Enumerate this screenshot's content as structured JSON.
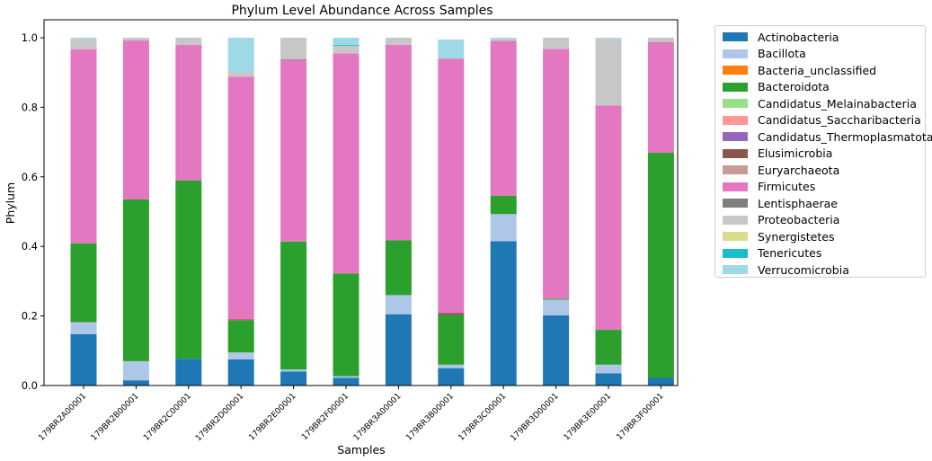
{
  "chart_data": {
    "type": "bar",
    "stacked": true,
    "title": "Phylum Level Abundance Across Samples",
    "xlabel": "Samples",
    "ylabel": "Phylum",
    "ylim": [
      0,
      1.0
    ],
    "yticks": [
      "0.0",
      "0.2",
      "0.4",
      "0.6",
      "0.8",
      "1.0"
    ],
    "legend_position": "outside-right",
    "grid": false,
    "categories": [
      "179BR2A00001",
      "179BR2B00001",
      "179BR2C00001",
      "179BR2D00001",
      "179BR2E00001",
      "179BR2F00001",
      "179BR3A00001",
      "179BR3B00001",
      "179BR3C00001",
      "179BR3D00001",
      "179BR3E00001",
      "179BR3F00001"
    ],
    "series": [
      {
        "name": "Actinobacteria",
        "color": "#1f77b4",
        "values": [
          0.148,
          0.015,
          0.077,
          0.075,
          0.04,
          0.022,
          0.205,
          0.05,
          0.415,
          0.202,
          0.035,
          0.022
        ]
      },
      {
        "name": "Bacillota",
        "color": "#aec7e8",
        "values": [
          0.034,
          0.055,
          0.0,
          0.02,
          0.006,
          0.005,
          0.055,
          0.01,
          0.078,
          0.045,
          0.025,
          0.0
        ]
      },
      {
        "name": "Bacteria_unclassified",
        "color": "#ff7f0e",
        "values": [
          0,
          0,
          0,
          0,
          0,
          0,
          0,
          0,
          0,
          0,
          0,
          0
        ]
      },
      {
        "name": "Bacteroidota",
        "color": "#2ca02c",
        "values": [
          0.227,
          0.465,
          0.513,
          0.093,
          0.368,
          0.295,
          0.158,
          0.143,
          0.053,
          0.003,
          0.1,
          0.648
        ]
      },
      {
        "name": "Candidatus_Melainabacteria",
        "color": "#98df8a",
        "values": [
          0,
          0,
          0,
          0,
          0,
          0,
          0,
          0,
          0,
          0,
          0,
          0
        ]
      },
      {
        "name": "Candidatus_Saccharibacteria",
        "color": "#ff9896",
        "values": [
          0,
          0,
          0,
          0,
          0,
          0,
          0,
          0,
          0,
          0,
          0,
          0
        ]
      },
      {
        "name": "Candidatus_Thermoplasmatota",
        "color": "#9467bd",
        "values": [
          0,
          0,
          0,
          0,
          0,
          0,
          0,
          0,
          0,
          0,
          0,
          0
        ]
      },
      {
        "name": "Elusimicrobia",
        "color": "#8c564b",
        "values": [
          0,
          0,
          0,
          0.002,
          0,
          0,
          0,
          0.005,
          0,
          0,
          0,
          0
        ]
      },
      {
        "name": "Euryarchaeota",
        "color": "#c49c94",
        "values": [
          0,
          0,
          0,
          0,
          0,
          0,
          0,
          0,
          0,
          0,
          0,
          0
        ]
      },
      {
        "name": "Firmicutes",
        "color": "#e377c2",
        "values": [
          0.558,
          0.457,
          0.39,
          0.698,
          0.522,
          0.633,
          0.562,
          0.732,
          0.445,
          0.718,
          0.645,
          0.318
        ]
      },
      {
        "name": "Lentisphaerae",
        "color": "#7f7f7f",
        "values": [
          0,
          0,
          0,
          0,
          0.002,
          0,
          0,
          0,
          0,
          0,
          0,
          0
        ]
      },
      {
        "name": "Proteobacteria",
        "color": "#c7c7c7",
        "values": [
          0.03,
          0.008,
          0.02,
          0.014,
          0.062,
          0.022,
          0.02,
          0.0,
          0.006,
          0.032,
          0.192,
          0.012
        ]
      },
      {
        "name": "Synergistetes",
        "color": "#dbdb8d",
        "values": [
          0,
          0,
          0,
          0,
          0,
          0,
          0,
          0,
          0,
          0,
          0,
          0
        ]
      },
      {
        "name": "Tenericutes",
        "color": "#17becf",
        "values": [
          0,
          0,
          0,
          0,
          0,
          0.003,
          0,
          0,
          0,
          0,
          0,
          0
        ]
      },
      {
        "name": "Verrucomicrobia",
        "color": "#9edae5",
        "values": [
          0.003,
          0.0,
          0.0,
          0.098,
          0.0,
          0.02,
          0.0,
          0.055,
          0.003,
          0.0,
          0.003,
          0.0
        ]
      }
    ]
  }
}
